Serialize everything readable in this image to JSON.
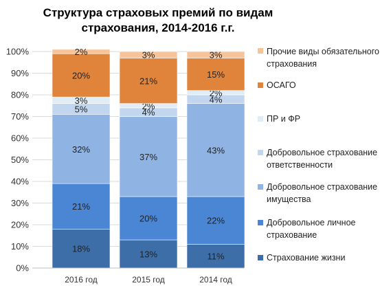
{
  "chart_data": {
    "type": "bar",
    "stacked": true,
    "title": "Структура страховых премий по видам страхования, 2014-2016 г.г.",
    "categories": [
      "2016 год",
      "2015 год",
      "2014 год"
    ],
    "y_ticks": [
      "0%",
      "10%",
      "20%",
      "30%",
      "40%",
      "50%",
      "60%",
      "70%",
      "80%",
      "90%",
      "100%"
    ],
    "ylim": [
      0,
      100
    ],
    "grid": true,
    "legend_position": "right",
    "series": [
      {
        "name": "Страхование жизни",
        "values": [
          18,
          13,
          11
        ],
        "labels": [
          "18%",
          "13%",
          "11%"
        ],
        "color": "#3e6ea8"
      },
      {
        "name": "Добровольное личное страхование",
        "values": [
          21,
          20,
          22
        ],
        "labels": [
          "21%",
          "20%",
          "22%"
        ],
        "color": "#4a86d4"
      },
      {
        "name": "Добровольное страхование имущества",
        "values": [
          32,
          37,
          43
        ],
        "labels": [
          "32%",
          "37%",
          "43%"
        ],
        "color": "#8fb3e3"
      },
      {
        "name": "Добровольное страхование ответственности",
        "values": [
          5,
          4,
          4
        ],
        "labels": [
          "5%",
          "4%",
          "4%"
        ],
        "color": "#c3d6f0"
      },
      {
        "name": "ПР и ФР",
        "values": [
          3,
          2,
          2
        ],
        "labels": [
          "3%",
          "2%",
          "2%"
        ],
        "color": "#e1edf6"
      },
      {
        "name": "ОСАГО",
        "values": [
          20,
          21,
          15
        ],
        "labels": [
          "20%",
          "21%",
          "15%"
        ],
        "color": "#e0843c"
      },
      {
        "name": "Прочие виды обязательного страхования",
        "values": [
          2,
          3,
          3
        ],
        "labels": [
          "2%",
          "3%",
          "3%"
        ],
        "color": "#f7c49a"
      }
    ]
  },
  "legend": [
    {
      "label": "Прочие виды обязательного страхования",
      "color": "#f7c49a"
    },
    {
      "label": "ОСАГО",
      "color": "#e0843c"
    },
    {
      "label": "ПР и ФР",
      "color": "#e1edf6"
    },
    {
      "label": "Добровольное страхование ответственности",
      "color": "#c3d6f0"
    },
    {
      "label": "Добровольное страхование имущества",
      "color": "#8fb3e3"
    },
    {
      "label": "Добровольное личное страхование",
      "color": "#4a86d4"
    },
    {
      "label": "Страхование жизни",
      "color": "#3e6ea8"
    }
  ]
}
